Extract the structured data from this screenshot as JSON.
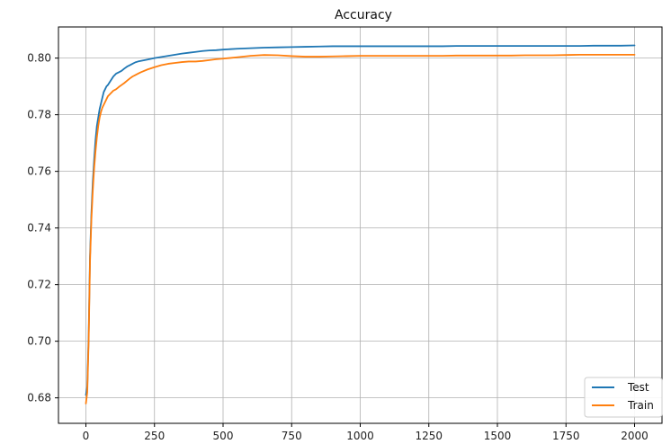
{
  "chart_data": {
    "type": "line",
    "title": "Accuracy",
    "xlabel": "",
    "ylabel": "",
    "xlim": [
      -100,
      2100
    ],
    "ylim": [
      0.671,
      0.811
    ],
    "x_ticks": [
      0,
      250,
      500,
      750,
      1000,
      1250,
      1500,
      1750,
      2000
    ],
    "y_ticks": [
      0.68,
      0.7,
      0.72,
      0.74,
      0.76,
      0.78,
      0.8
    ],
    "grid": true,
    "legend_position": "bottom-right",
    "series": [
      {
        "name": "Test",
        "color": "#1f77b4",
        "x": [
          0,
          5,
          10,
          15,
          20,
          25,
          30,
          35,
          40,
          45,
          50,
          55,
          60,
          65,
          70,
          75,
          80,
          90,
          100,
          110,
          120,
          130,
          140,
          150,
          160,
          170,
          180,
          190,
          200,
          225,
          250,
          275,
          300,
          325,
          350,
          375,
          400,
          425,
          450,
          475,
          500,
          550,
          600,
          650,
          700,
          750,
          800,
          850,
          900,
          950,
          1000,
          1050,
          1100,
          1150,
          1200,
          1250,
          1300,
          1350,
          1400,
          1450,
          1500,
          1550,
          1600,
          1650,
          1700,
          1750,
          1800,
          1850,
          1900,
          1950,
          2000
        ],
        "values": [
          0.681,
          0.684,
          0.702,
          0.73,
          0.745,
          0.756,
          0.764,
          0.771,
          0.776,
          0.779,
          0.782,
          0.784,
          0.786,
          0.788,
          0.789,
          0.79,
          0.7905,
          0.792,
          0.7935,
          0.7945,
          0.795,
          0.7955,
          0.7963,
          0.797,
          0.7975,
          0.798,
          0.7985,
          0.7988,
          0.799,
          0.7995,
          0.8,
          0.8004,
          0.8008,
          0.8012,
          0.8016,
          0.8019,
          0.8022,
          0.8025,
          0.8027,
          0.8028,
          0.803,
          0.8033,
          0.8035,
          0.8037,
          0.8038,
          0.8039,
          0.804,
          0.8041,
          0.8042,
          0.8042,
          0.8042,
          0.8042,
          0.8042,
          0.8042,
          0.8042,
          0.8042,
          0.8042,
          0.8043,
          0.8043,
          0.8043,
          0.8043,
          0.8043,
          0.8043,
          0.8043,
          0.8043,
          0.8043,
          0.8043,
          0.8044,
          0.8044,
          0.8044,
          0.8045
        ]
      },
      {
        "name": "Train",
        "color": "#ff7f0e",
        "x": [
          0,
          5,
          10,
          15,
          20,
          25,
          30,
          35,
          40,
          45,
          50,
          55,
          60,
          65,
          70,
          75,
          80,
          90,
          100,
          110,
          120,
          130,
          140,
          150,
          160,
          170,
          180,
          190,
          200,
          225,
          250,
          275,
          300,
          325,
          350,
          375,
          400,
          425,
          450,
          475,
          500,
          550,
          600,
          650,
          700,
          750,
          800,
          850,
          900,
          950,
          1000,
          1050,
          1100,
          1150,
          1200,
          1250,
          1300,
          1350,
          1400,
          1450,
          1500,
          1550,
          1600,
          1650,
          1700,
          1750,
          1800,
          1850,
          1900,
          1950,
          2000
        ],
        "values": [
          0.678,
          0.682,
          0.7,
          0.728,
          0.743,
          0.753,
          0.761,
          0.767,
          0.772,
          0.776,
          0.779,
          0.781,
          0.7825,
          0.7835,
          0.7845,
          0.7855,
          0.7865,
          0.7875,
          0.7885,
          0.789,
          0.7898,
          0.7905,
          0.7912,
          0.792,
          0.7928,
          0.7935,
          0.794,
          0.7945,
          0.795,
          0.796,
          0.7968,
          0.7975,
          0.798,
          0.7983,
          0.7986,
          0.7988,
          0.7988,
          0.799,
          0.7993,
          0.7996,
          0.7998,
          0.8003,
          0.8008,
          0.8011,
          0.801,
          0.8007,
          0.8005,
          0.8005,
          0.8006,
          0.8007,
          0.8008,
          0.8008,
          0.8008,
          0.8008,
          0.8008,
          0.8008,
          0.8008,
          0.8009,
          0.8009,
          0.8009,
          0.8009,
          0.8009,
          0.801,
          0.801,
          0.801,
          0.8011,
          0.8012,
          0.8012,
          0.8012,
          0.8012,
          0.8012
        ]
      }
    ]
  }
}
